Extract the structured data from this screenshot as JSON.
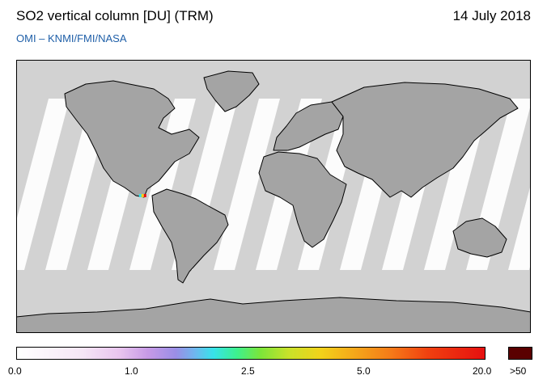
{
  "header": {
    "title": "SO2 vertical column [DU] (TRM)",
    "subtitle": "OMI  –  KNMI/FMI/NASA",
    "date": "14 July 2018"
  },
  "map": {
    "projection": "equirectangular",
    "longitude_ticks": [
      "-150",
      "-120",
      "-90",
      "-60",
      "-30",
      "0",
      "30",
      "60",
      "90",
      "120",
      "150"
    ],
    "latitude_ticks": [
      "60",
      "30",
      "0",
      "-30",
      "-60"
    ],
    "colors": {
      "ocean": "#d2d2d2",
      "land": "#a4a4a4",
      "swath": "#ffffff"
    },
    "hotspot": {
      "lon": -93,
      "lat": 0,
      "colors": [
        "#37e3ea",
        "#f2d21a",
        "#e61010"
      ]
    }
  },
  "colorbar": {
    "labels": [
      "0.0",
      "1.0",
      "2.5",
      "5.0",
      "20.0",
      ">50"
    ],
    "max_color": "#5a0000"
  }
}
